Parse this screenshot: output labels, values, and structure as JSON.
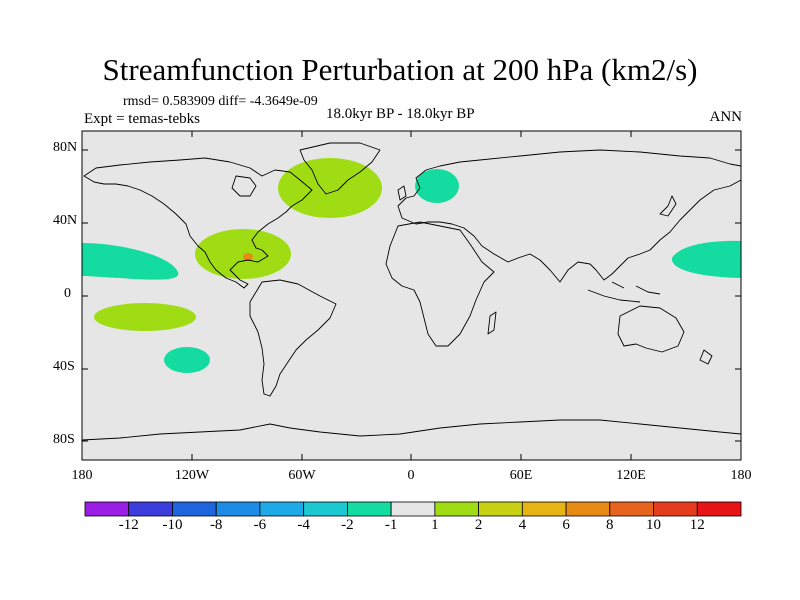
{
  "title": "Streamfunction Perturbation at 200 hPa (km2/s)",
  "stats_line": "rmsd= 0.583909 diff= -4.3649e-09",
  "experiment_label": "Expt = temas-tebks",
  "period_label": "18.0kyr BP - 18.0kyr BP",
  "season_label": "ANN",
  "y_axis_labels": [
    "80N",
    "40N",
    "0",
    "40S",
    "80S"
  ],
  "x_axis_labels": [
    "180",
    "120W",
    "60W",
    "0",
    "60E",
    "120E",
    "180"
  ],
  "colorbar": {
    "labels": [
      "-12",
      "-10",
      "-8",
      "-6",
      "-4",
      "-2",
      "-1",
      "1",
      "2",
      "4",
      "6",
      "8",
      "10",
      "12"
    ],
    "colors": [
      "#9b1ee6",
      "#3c3cdc",
      "#1e64dc",
      "#1e8ce6",
      "#1eaae6",
      "#1ec8d2",
      "#14dca0",
      "#e6e6e6",
      "#a0dc14",
      "#c8d214",
      "#e6b414",
      "#e68c14",
      "#e6641e",
      "#e63c1e",
      "#e61414"
    ]
  },
  "map_background_color": "#e6e6e6",
  "anomaly_regions": [
    {
      "name": "north-atlantic-positive",
      "category": "1 to 2"
    },
    {
      "name": "scandinavia-negative",
      "category": "-2 to -1"
    },
    {
      "name": "gulf-mexico-positive",
      "category": "1 to 2"
    },
    {
      "name": "gulf-mexico-core",
      "category": "6 to 8"
    },
    {
      "name": "east-pacific-negative",
      "category": "-2 to -1"
    },
    {
      "name": "tropical-pacific-positive",
      "category": "1 to 2"
    },
    {
      "name": "south-pacific-negative",
      "category": "-2 to -1"
    },
    {
      "name": "west-pacific-negative",
      "category": "-2 to -1"
    }
  ]
}
